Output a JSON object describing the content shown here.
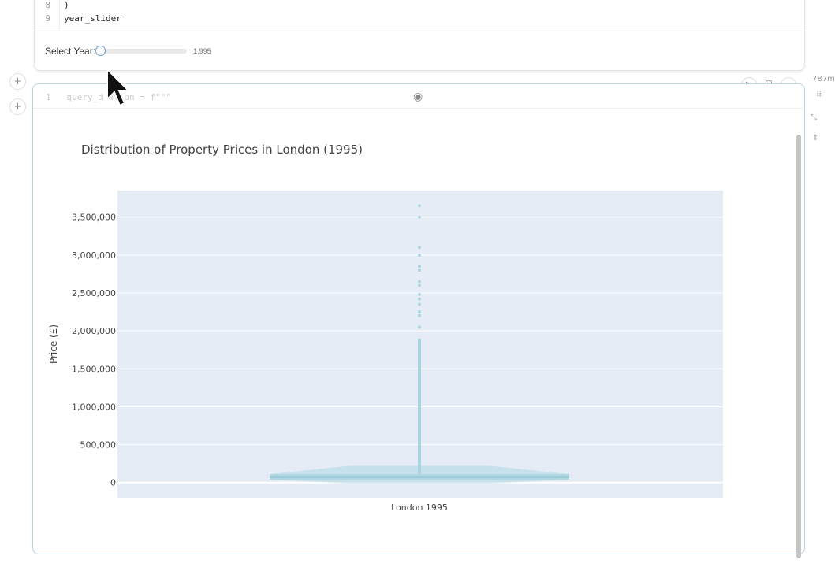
{
  "code_cell": {
    "lines": [
      {
        "num": "8",
        "text": ")"
      },
      {
        "num": "9",
        "text": "year_slider"
      }
    ]
  },
  "slider": {
    "label": "Select Year:",
    "value_text": "1,995",
    "value": 1995
  },
  "next_cell": {
    "ghost_line_num": "1",
    "ghost_code": "query_d   ation = f\"\"\"",
    "side_text": "787m"
  },
  "icons": {
    "add": "plus-icon",
    "eye": "eye-icon",
    "run": "play-icon",
    "stop": "square-icon",
    "collapse": "minus-icon",
    "drag": "drag-handle-icon",
    "expand": "expand-icon",
    "reorder": "chevron-updown-icon"
  },
  "chart_data": {
    "type": "violin",
    "title": "Distribution of Property Prices in London (1995)",
    "xlabel": "",
    "ylabel": "Price (£)",
    "categories": [
      "London 1995"
    ],
    "ylim": [
      -200000,
      3850000
    ],
    "yticks": [
      0,
      500000,
      1000000,
      1500000,
      2000000,
      2500000,
      3000000,
      3500000
    ],
    "ytick_labels": [
      "0",
      "500,000",
      "1,000,000",
      "1,500,000",
      "2,000,000",
      "2,500,000",
      "3,000,000",
      "3,500,000"
    ],
    "box": {
      "q1": 40000,
      "median": 70000,
      "q3": 110000,
      "whisker_low": 0,
      "whisker_high": 1900000
    },
    "outliers": [
      2050000,
      2200000,
      2250000,
      2350000,
      2420000,
      2480000,
      2600000,
      2650000,
      2800000,
      2850000,
      3000000,
      3100000,
      3500000,
      3650000
    ],
    "color": "#a8d5e0",
    "plot_bg": "#e5ecf6",
    "grid": true
  }
}
